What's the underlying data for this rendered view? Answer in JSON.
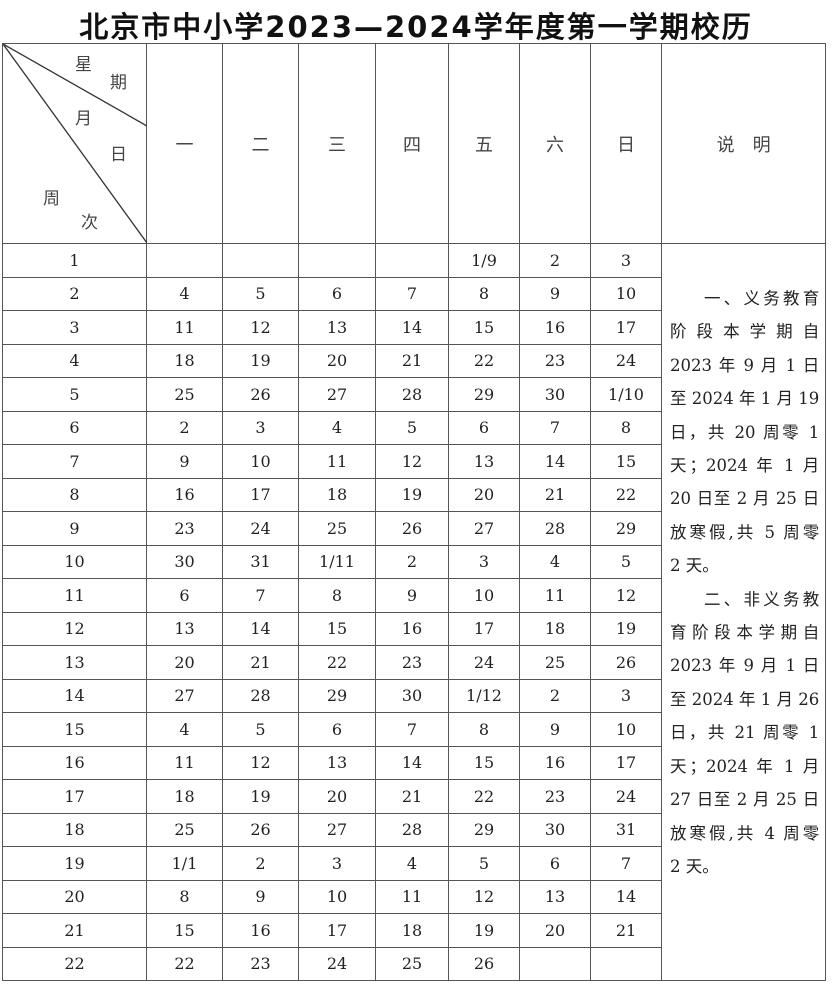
{
  "title": "北京市中小学2023—2024学年度第一学期校历",
  "header": {
    "diagonal": {
      "xing": "星",
      "qi": "期",
      "yue": "月",
      "ri": "日",
      "zhou": "周",
      "ci": "次"
    },
    "days": [
      "一",
      "二",
      "三",
      "四",
      "五",
      "六",
      "日"
    ],
    "notes_label": "说　明"
  },
  "rows": [
    {
      "week": "1",
      "days": [
        "",
        "",
        "",
        "",
        "1/9",
        "2",
        "3"
      ]
    },
    {
      "week": "2",
      "days": [
        "4",
        "5",
        "6",
        "7",
        "8",
        "9",
        "10"
      ]
    },
    {
      "week": "3",
      "days": [
        "11",
        "12",
        "13",
        "14",
        "15",
        "16",
        "17"
      ]
    },
    {
      "week": "4",
      "days": [
        "18",
        "19",
        "20",
        "21",
        "22",
        "23",
        "24"
      ]
    },
    {
      "week": "5",
      "days": [
        "25",
        "26",
        "27",
        "28",
        "29",
        "30",
        "1/10"
      ]
    },
    {
      "week": "6",
      "days": [
        "2",
        "3",
        "4",
        "5",
        "6",
        "7",
        "8"
      ]
    },
    {
      "week": "7",
      "days": [
        "9",
        "10",
        "11",
        "12",
        "13",
        "14",
        "15"
      ]
    },
    {
      "week": "8",
      "days": [
        "16",
        "17",
        "18",
        "19",
        "20",
        "21",
        "22"
      ]
    },
    {
      "week": "9",
      "days": [
        "23",
        "24",
        "25",
        "26",
        "27",
        "28",
        "29"
      ]
    },
    {
      "week": "10",
      "days": [
        "30",
        "31",
        "1/11",
        "2",
        "3",
        "4",
        "5"
      ]
    },
    {
      "week": "11",
      "days": [
        "6",
        "7",
        "8",
        "9",
        "10",
        "11",
        "12"
      ]
    },
    {
      "week": "12",
      "days": [
        "13",
        "14",
        "15",
        "16",
        "17",
        "18",
        "19"
      ]
    },
    {
      "week": "13",
      "days": [
        "20",
        "21",
        "22",
        "23",
        "24",
        "25",
        "26"
      ]
    },
    {
      "week": "14",
      "days": [
        "27",
        "28",
        "29",
        "30",
        "1/12",
        "2",
        "3"
      ]
    },
    {
      "week": "15",
      "days": [
        "4",
        "5",
        "6",
        "7",
        "8",
        "9",
        "10"
      ]
    },
    {
      "week": "16",
      "days": [
        "11",
        "12",
        "13",
        "14",
        "15",
        "16",
        "17"
      ]
    },
    {
      "week": "17",
      "days": [
        "18",
        "19",
        "20",
        "21",
        "22",
        "23",
        "24"
      ]
    },
    {
      "week": "18",
      "days": [
        "25",
        "26",
        "27",
        "28",
        "29",
        "30",
        "31"
      ]
    },
    {
      "week": "19",
      "days": [
        "1/1",
        "2",
        "3",
        "4",
        "5",
        "6",
        "7"
      ]
    },
    {
      "week": "20",
      "days": [
        "8",
        "9",
        "10",
        "11",
        "12",
        "13",
        "14"
      ]
    },
    {
      "week": "21",
      "days": [
        "15",
        "16",
        "17",
        "18",
        "19",
        "20",
        "21"
      ]
    },
    {
      "week": "22",
      "days": [
        "22",
        "23",
        "24",
        "25",
        "26",
        "",
        ""
      ]
    }
  ],
  "notes": [
    [
      "一、义务教育",
      "阶段本学期自",
      "2023 年 9 月 1 日",
      "至 2024 年 1 月 19",
      "日，共 20 周零 1",
      "天；2024 年 1 月",
      "20 日至 2 月 25 日",
      "放寒假,共 5 周零",
      "2 天。"
    ],
    [
      "二、非义务教",
      "育阶段本学期自",
      "2023 年 9 月 1 日",
      "至 2024 年 1 月 26",
      "日，共 21 周零 1",
      "天；2024 年 1 月",
      "27 日至 2 月 25 日",
      "放寒假,共 4 周零",
      "2 天。"
    ]
  ]
}
